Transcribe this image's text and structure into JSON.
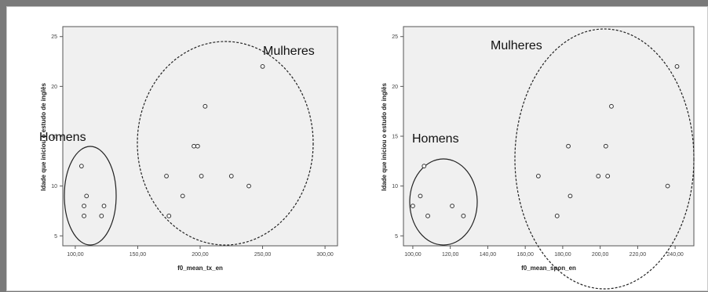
{
  "chart_data": [
    {
      "type": "scatter",
      "xlabel": "f0_mean_tx_en",
      "ylabel": "Idade que iniciou o estudo de inglês",
      "xlim": [
        90,
        310
      ],
      "ylim": [
        4,
        26
      ],
      "xticks": [
        100,
        150,
        200,
        250,
        300
      ],
      "xtick_labels": [
        "100,00",
        "150,00",
        "200,00",
        "250,00",
        "300,00"
      ],
      "yticks": [
        5,
        10,
        15,
        20,
        25
      ],
      "ytick_labels": [
        "5",
        "10",
        "15",
        "20",
        "25"
      ],
      "points": [
        {
          "x": 105,
          "y": 12
        },
        {
          "x": 109,
          "y": 9
        },
        {
          "x": 107,
          "y": 8
        },
        {
          "x": 107,
          "y": 7
        },
        {
          "x": 121,
          "y": 7
        },
        {
          "x": 123,
          "y": 8
        },
        {
          "x": 173,
          "y": 11
        },
        {
          "x": 175,
          "y": 7
        },
        {
          "x": 186,
          "y": 9
        },
        {
          "x": 195,
          "y": 14
        },
        {
          "x": 198,
          "y": 14
        },
        {
          "x": 201,
          "y": 11
        },
        {
          "x": 204,
          "y": 18
        },
        {
          "x": 225,
          "y": 11
        },
        {
          "x": 239,
          "y": 10
        },
        {
          "x": 250,
          "y": 22
        }
      ],
      "groups": [
        {
          "label": "Homens",
          "style": "solid"
        },
        {
          "label": "Mulheres",
          "style": "dashed"
        }
      ],
      "grid": false
    },
    {
      "type": "scatter",
      "xlabel": "f0_mean_spon_en",
      "ylabel": "Idade que iniciou o estudo de inglês",
      "xlim": [
        95,
        250
      ],
      "ylim": [
        4,
        26
      ],
      "xticks": [
        100,
        120,
        140,
        160,
        180,
        200,
        220,
        240
      ],
      "xtick_labels": [
        "100,00",
        "120,00",
        "140,00",
        "160,00",
        "180,00",
        "200,00",
        "220,00",
        "240,00"
      ],
      "yticks": [
        5,
        10,
        15,
        20,
        25
      ],
      "ytick_labels": [
        "5",
        "10",
        "15",
        "20",
        "25"
      ],
      "points": [
        {
          "x": 100,
          "y": 8
        },
        {
          "x": 104,
          "y": 9
        },
        {
          "x": 106,
          "y": 12
        },
        {
          "x": 108,
          "y": 7
        },
        {
          "x": 121,
          "y": 8
        },
        {
          "x": 127,
          "y": 7
        },
        {
          "x": 167,
          "y": 11
        },
        {
          "x": 177,
          "y": 7
        },
        {
          "x": 183,
          "y": 14
        },
        {
          "x": 184,
          "y": 9
        },
        {
          "x": 199,
          "y": 11
        },
        {
          "x": 203,
          "y": 14
        },
        {
          "x": 204,
          "y": 11
        },
        {
          "x": 206,
          "y": 18
        },
        {
          "x": 236,
          "y": 10
        },
        {
          "x": 241,
          "y": 22
        }
      ],
      "groups": [
        {
          "label": "Homens",
          "style": "solid"
        },
        {
          "label": "Mulheres",
          "style": "dashed"
        }
      ],
      "grid": false
    }
  ]
}
